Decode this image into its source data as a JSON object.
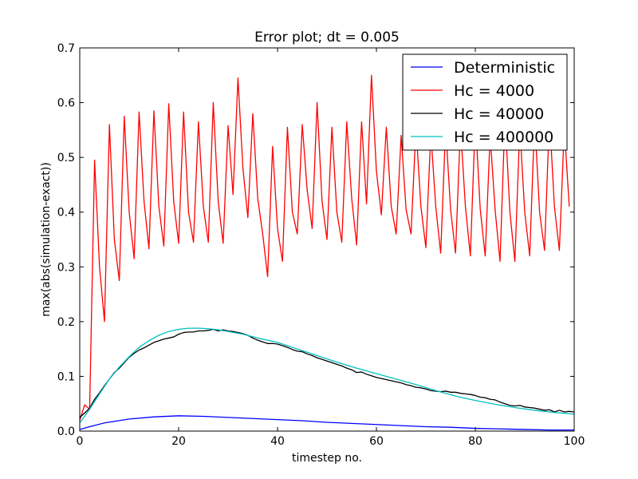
{
  "chart_data": {
    "type": "line",
    "title": "Error plot; dt = 0.005",
    "xlabel": "timestep no.",
    "ylabel": "max(abs(simulation-exact))",
    "xlim": [
      0,
      100
    ],
    "ylim": [
      0.0,
      0.7
    ],
    "xticks": [
      "0",
      "20",
      "40",
      "60",
      "80",
      "100"
    ],
    "yticks": [
      "0.0",
      "0.1",
      "0.2",
      "0.3",
      "0.4",
      "0.5",
      "0.6",
      "0.7"
    ],
    "grid": false,
    "legend_position": "top-right",
    "series": [
      {
        "name": "Deterministic",
        "color": "#0000ff",
        "points": [
          [
            0,
            0.003
          ],
          [
            2,
            0.008
          ],
          [
            5,
            0.015
          ],
          [
            10,
            0.022
          ],
          [
            15,
            0.026
          ],
          [
            20,
            0.028
          ],
          [
            25,
            0.027
          ],
          [
            30,
            0.025
          ],
          [
            35,
            0.023
          ],
          [
            40,
            0.021
          ],
          [
            45,
            0.019
          ],
          [
            50,
            0.016
          ],
          [
            55,
            0.014
          ],
          [
            60,
            0.012
          ],
          [
            65,
            0.01
          ],
          [
            70,
            0.008
          ],
          [
            75,
            0.007
          ],
          [
            80,
            0.005
          ],
          [
            85,
            0.004
          ],
          [
            90,
            0.003
          ],
          [
            95,
            0.002
          ],
          [
            100,
            0.002
          ]
        ]
      },
      {
        "name": "Hc = 4000",
        "color": "#ff0000",
        "points": [
          [
            0,
            0.02
          ],
          [
            1,
            0.048
          ],
          [
            2,
            0.04
          ],
          [
            3,
            0.495
          ],
          [
            4,
            0.3
          ],
          [
            5,
            0.2
          ],
          [
            6,
            0.56
          ],
          [
            7,
            0.35
          ],
          [
            8,
            0.275
          ],
          [
            9,
            0.575
          ],
          [
            10,
            0.4
          ],
          [
            11,
            0.315
          ],
          [
            12,
            0.583
          ],
          [
            13,
            0.42
          ],
          [
            14,
            0.333
          ],
          [
            15,
            0.585
          ],
          [
            16,
            0.41
          ],
          [
            17,
            0.338
          ],
          [
            18,
            0.598
          ],
          [
            19,
            0.42
          ],
          [
            20,
            0.343
          ],
          [
            21,
            0.583
          ],
          [
            22,
            0.4
          ],
          [
            23,
            0.345
          ],
          [
            24,
            0.565
          ],
          [
            25,
            0.41
          ],
          [
            26,
            0.345
          ],
          [
            27,
            0.6
          ],
          [
            28,
            0.42
          ],
          [
            29,
            0.343
          ],
          [
            30,
            0.558
          ],
          [
            31,
            0.432
          ],
          [
            32,
            0.645
          ],
          [
            33,
            0.48
          ],
          [
            34,
            0.39
          ],
          [
            35,
            0.58
          ],
          [
            36,
            0.425
          ],
          [
            37,
            0.36
          ],
          [
            38,
            0.282
          ],
          [
            39,
            0.52
          ],
          [
            40,
            0.37
          ],
          [
            41,
            0.31
          ],
          [
            42,
            0.555
          ],
          [
            43,
            0.4
          ],
          [
            44,
            0.36
          ],
          [
            45,
            0.56
          ],
          [
            46,
            0.44
          ],
          [
            47,
            0.37
          ],
          [
            48,
            0.6
          ],
          [
            49,
            0.42
          ],
          [
            50,
            0.35
          ],
          [
            51,
            0.555
          ],
          [
            52,
            0.4
          ],
          [
            53,
            0.345
          ],
          [
            54,
            0.565
          ],
          [
            55,
            0.425
          ],
          [
            56,
            0.34
          ],
          [
            57,
            0.565
          ],
          [
            58,
            0.415
          ],
          [
            59,
            0.65
          ],
          [
            60,
            0.475
          ],
          [
            61,
            0.395
          ],
          [
            62,
            0.555
          ],
          [
            63,
            0.41
          ],
          [
            64,
            0.36
          ],
          [
            65,
            0.54
          ],
          [
            66,
            0.405
          ],
          [
            67,
            0.36
          ],
          [
            68,
            0.555
          ],
          [
            69,
            0.41
          ],
          [
            70,
            0.335
          ],
          [
            71,
            0.545
          ],
          [
            72,
            0.41
          ],
          [
            73,
            0.325
          ],
          [
            74,
            0.555
          ],
          [
            75,
            0.405
          ],
          [
            76,
            0.325
          ],
          [
            77,
            0.556
          ],
          [
            78,
            0.41
          ],
          [
            79,
            0.32
          ],
          [
            80,
            0.57
          ],
          [
            81,
            0.405
          ],
          [
            82,
            0.32
          ],
          [
            83,
            0.54
          ],
          [
            84,
            0.405
          ],
          [
            85,
            0.31
          ],
          [
            86,
            0.575
          ],
          [
            87,
            0.4
          ],
          [
            88,
            0.31
          ],
          [
            89,
            0.555
          ],
          [
            90,
            0.4
          ],
          [
            91,
            0.32
          ],
          [
            92,
            0.57
          ],
          [
            93,
            0.4
          ],
          [
            94,
            0.33
          ],
          [
            95,
            0.575
          ],
          [
            96,
            0.41
          ],
          [
            97,
            0.33
          ],
          [
            98,
            0.555
          ],
          [
            99,
            0.41
          ]
        ]
      },
      {
        "name": "Hc = 40000",
        "color": "#000000",
        "points": [
          [
            0,
            0.025
          ],
          [
            1,
            0.033
          ],
          [
            2,
            0.042
          ],
          [
            3,
            0.058
          ],
          [
            4,
            0.07
          ],
          [
            5,
            0.083
          ],
          [
            6,
            0.095
          ],
          [
            7,
            0.107
          ],
          [
            8,
            0.115
          ],
          [
            9,
            0.125
          ],
          [
            10,
            0.135
          ],
          [
            11,
            0.142
          ],
          [
            12,
            0.148
          ],
          [
            13,
            0.152
          ],
          [
            14,
            0.157
          ],
          [
            15,
            0.162
          ],
          [
            16,
            0.165
          ],
          [
            17,
            0.168
          ],
          [
            18,
            0.17
          ],
          [
            19,
            0.172
          ],
          [
            20,
            0.177
          ],
          [
            21,
            0.18
          ],
          [
            22,
            0.181
          ],
          [
            23,
            0.181
          ],
          [
            24,
            0.183
          ],
          [
            25,
            0.183
          ],
          [
            26,
            0.184
          ],
          [
            27,
            0.186
          ],
          [
            28,
            0.183
          ],
          [
            29,
            0.185
          ],
          [
            30,
            0.183
          ],
          [
            31,
            0.182
          ],
          [
            32,
            0.18
          ],
          [
            33,
            0.178
          ],
          [
            34,
            0.175
          ],
          [
            35,
            0.17
          ],
          [
            36,
            0.166
          ],
          [
            37,
            0.163
          ],
          [
            38,
            0.16
          ],
          [
            39,
            0.16
          ],
          [
            40,
            0.159
          ],
          [
            41,
            0.156
          ],
          [
            42,
            0.153
          ],
          [
            43,
            0.149
          ],
          [
            44,
            0.146
          ],
          [
            45,
            0.145
          ],
          [
            46,
            0.141
          ],
          [
            47,
            0.138
          ],
          [
            48,
            0.134
          ],
          [
            49,
            0.131
          ],
          [
            50,
            0.128
          ],
          [
            51,
            0.125
          ],
          [
            52,
            0.122
          ],
          [
            53,
            0.119
          ],
          [
            54,
            0.115
          ],
          [
            55,
            0.112
          ],
          [
            56,
            0.107
          ],
          [
            57,
            0.108
          ],
          [
            58,
            0.104
          ],
          [
            59,
            0.101
          ],
          [
            60,
            0.098
          ],
          [
            61,
            0.096
          ],
          [
            62,
            0.094
          ],
          [
            63,
            0.092
          ],
          [
            64,
            0.09
          ],
          [
            65,
            0.088
          ],
          [
            66,
            0.085
          ],
          [
            67,
            0.083
          ],
          [
            68,
            0.08
          ],
          [
            69,
            0.079
          ],
          [
            70,
            0.077
          ],
          [
            71,
            0.074
          ],
          [
            72,
            0.073
          ],
          [
            73,
            0.072
          ],
          [
            74,
            0.073
          ],
          [
            75,
            0.071
          ],
          [
            76,
            0.071
          ],
          [
            77,
            0.069
          ],
          [
            78,
            0.068
          ],
          [
            79,
            0.067
          ],
          [
            80,
            0.065
          ],
          [
            81,
            0.062
          ],
          [
            82,
            0.061
          ],
          [
            83,
            0.058
          ],
          [
            84,
            0.057
          ],
          [
            85,
            0.053
          ],
          [
            86,
            0.05
          ],
          [
            87,
            0.047
          ],
          [
            88,
            0.046
          ],
          [
            89,
            0.047
          ],
          [
            90,
            0.044
          ],
          [
            91,
            0.043
          ],
          [
            92,
            0.042
          ],
          [
            93,
            0.04
          ],
          [
            94,
            0.038
          ],
          [
            95,
            0.039
          ],
          [
            96,
            0.035
          ],
          [
            97,
            0.038
          ],
          [
            98,
            0.035
          ],
          [
            99,
            0.036
          ],
          [
            100,
            0.035
          ]
        ]
      },
      {
        "name": "Hc = 400000",
        "color": "#00bfbf",
        "points": [
          [
            0,
            0.015
          ],
          [
            2,
            0.04
          ],
          [
            4,
            0.068
          ],
          [
            6,
            0.095
          ],
          [
            8,
            0.117
          ],
          [
            10,
            0.136
          ],
          [
            12,
            0.153
          ],
          [
            14,
            0.165
          ],
          [
            16,
            0.175
          ],
          [
            18,
            0.182
          ],
          [
            20,
            0.186
          ],
          [
            22,
            0.188
          ],
          [
            24,
            0.188
          ],
          [
            26,
            0.187
          ],
          [
            28,
            0.185
          ],
          [
            30,
            0.182
          ],
          [
            33,
            0.177
          ],
          [
            36,
            0.17
          ],
          [
            40,
            0.162
          ],
          [
            44,
            0.15
          ],
          [
            48,
            0.138
          ],
          [
            52,
            0.126
          ],
          [
            56,
            0.115
          ],
          [
            60,
            0.105
          ],
          [
            64,
            0.095
          ],
          [
            68,
            0.085
          ],
          [
            72,
            0.074
          ],
          [
            76,
            0.064
          ],
          [
            80,
            0.056
          ],
          [
            84,
            0.049
          ],
          [
            88,
            0.043
          ],
          [
            92,
            0.038
          ],
          [
            96,
            0.034
          ],
          [
            100,
            0.031
          ]
        ]
      }
    ]
  }
}
